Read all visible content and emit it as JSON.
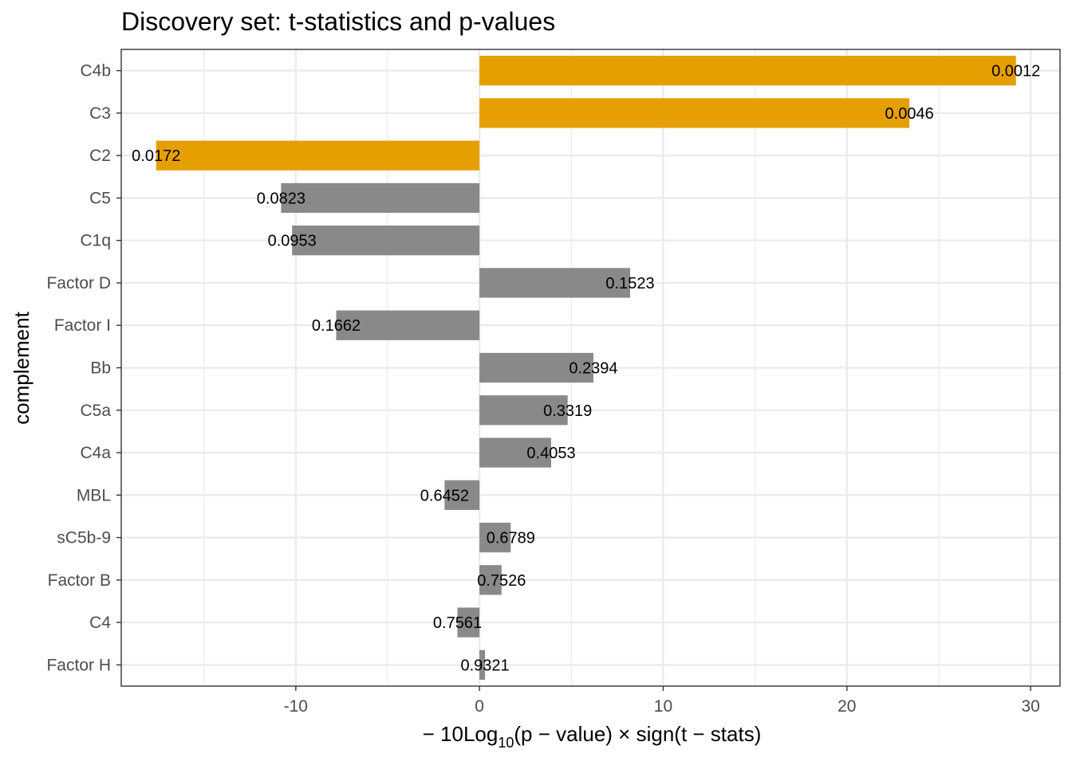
{
  "chart_data": {
    "type": "bar",
    "orientation": "horizontal",
    "title": "Discovery set: t-statistics and p-values",
    "ylabel": "complement",
    "xlabel": {
      "prefix": "− 10Log",
      "subscript": "10",
      "suffix": "(p − value) × sign(t − stats)"
    },
    "xlim": [
      -19.5,
      31.6
    ],
    "xticks": [
      -10,
      0,
      10,
      20,
      30
    ],
    "xtick_labels": [
      "-10",
      "0",
      "10",
      "20",
      "30"
    ],
    "grid": true,
    "colors": {
      "significant": "#E69F00",
      "not_significant": "#898989"
    },
    "categories": [
      "C4b",
      "C3",
      "C2",
      "C5",
      "C1q",
      "Factor D",
      "Factor I",
      "Bb",
      "C5a",
      "C4a",
      "MBL",
      "sC5b-9",
      "Factor B",
      "C4",
      "Factor H"
    ],
    "values": [
      29.2,
      23.4,
      -17.6,
      -10.8,
      -10.2,
      8.2,
      -7.8,
      6.2,
      4.8,
      3.9,
      -1.9,
      1.7,
      1.2,
      -1.2,
      0.3
    ],
    "labels": [
      "0.0012",
      "0.0046",
      "0.0172",
      "0.0823",
      "0.0953",
      "0.1523",
      "0.1662",
      "0.2394",
      "0.3319",
      "0.4053",
      "0.6452",
      "0.6789",
      "0.7526",
      "0.7561",
      "0.9321"
    ],
    "significant": [
      true,
      true,
      true,
      false,
      false,
      false,
      false,
      false,
      false,
      false,
      false,
      false,
      false,
      false,
      false
    ]
  }
}
